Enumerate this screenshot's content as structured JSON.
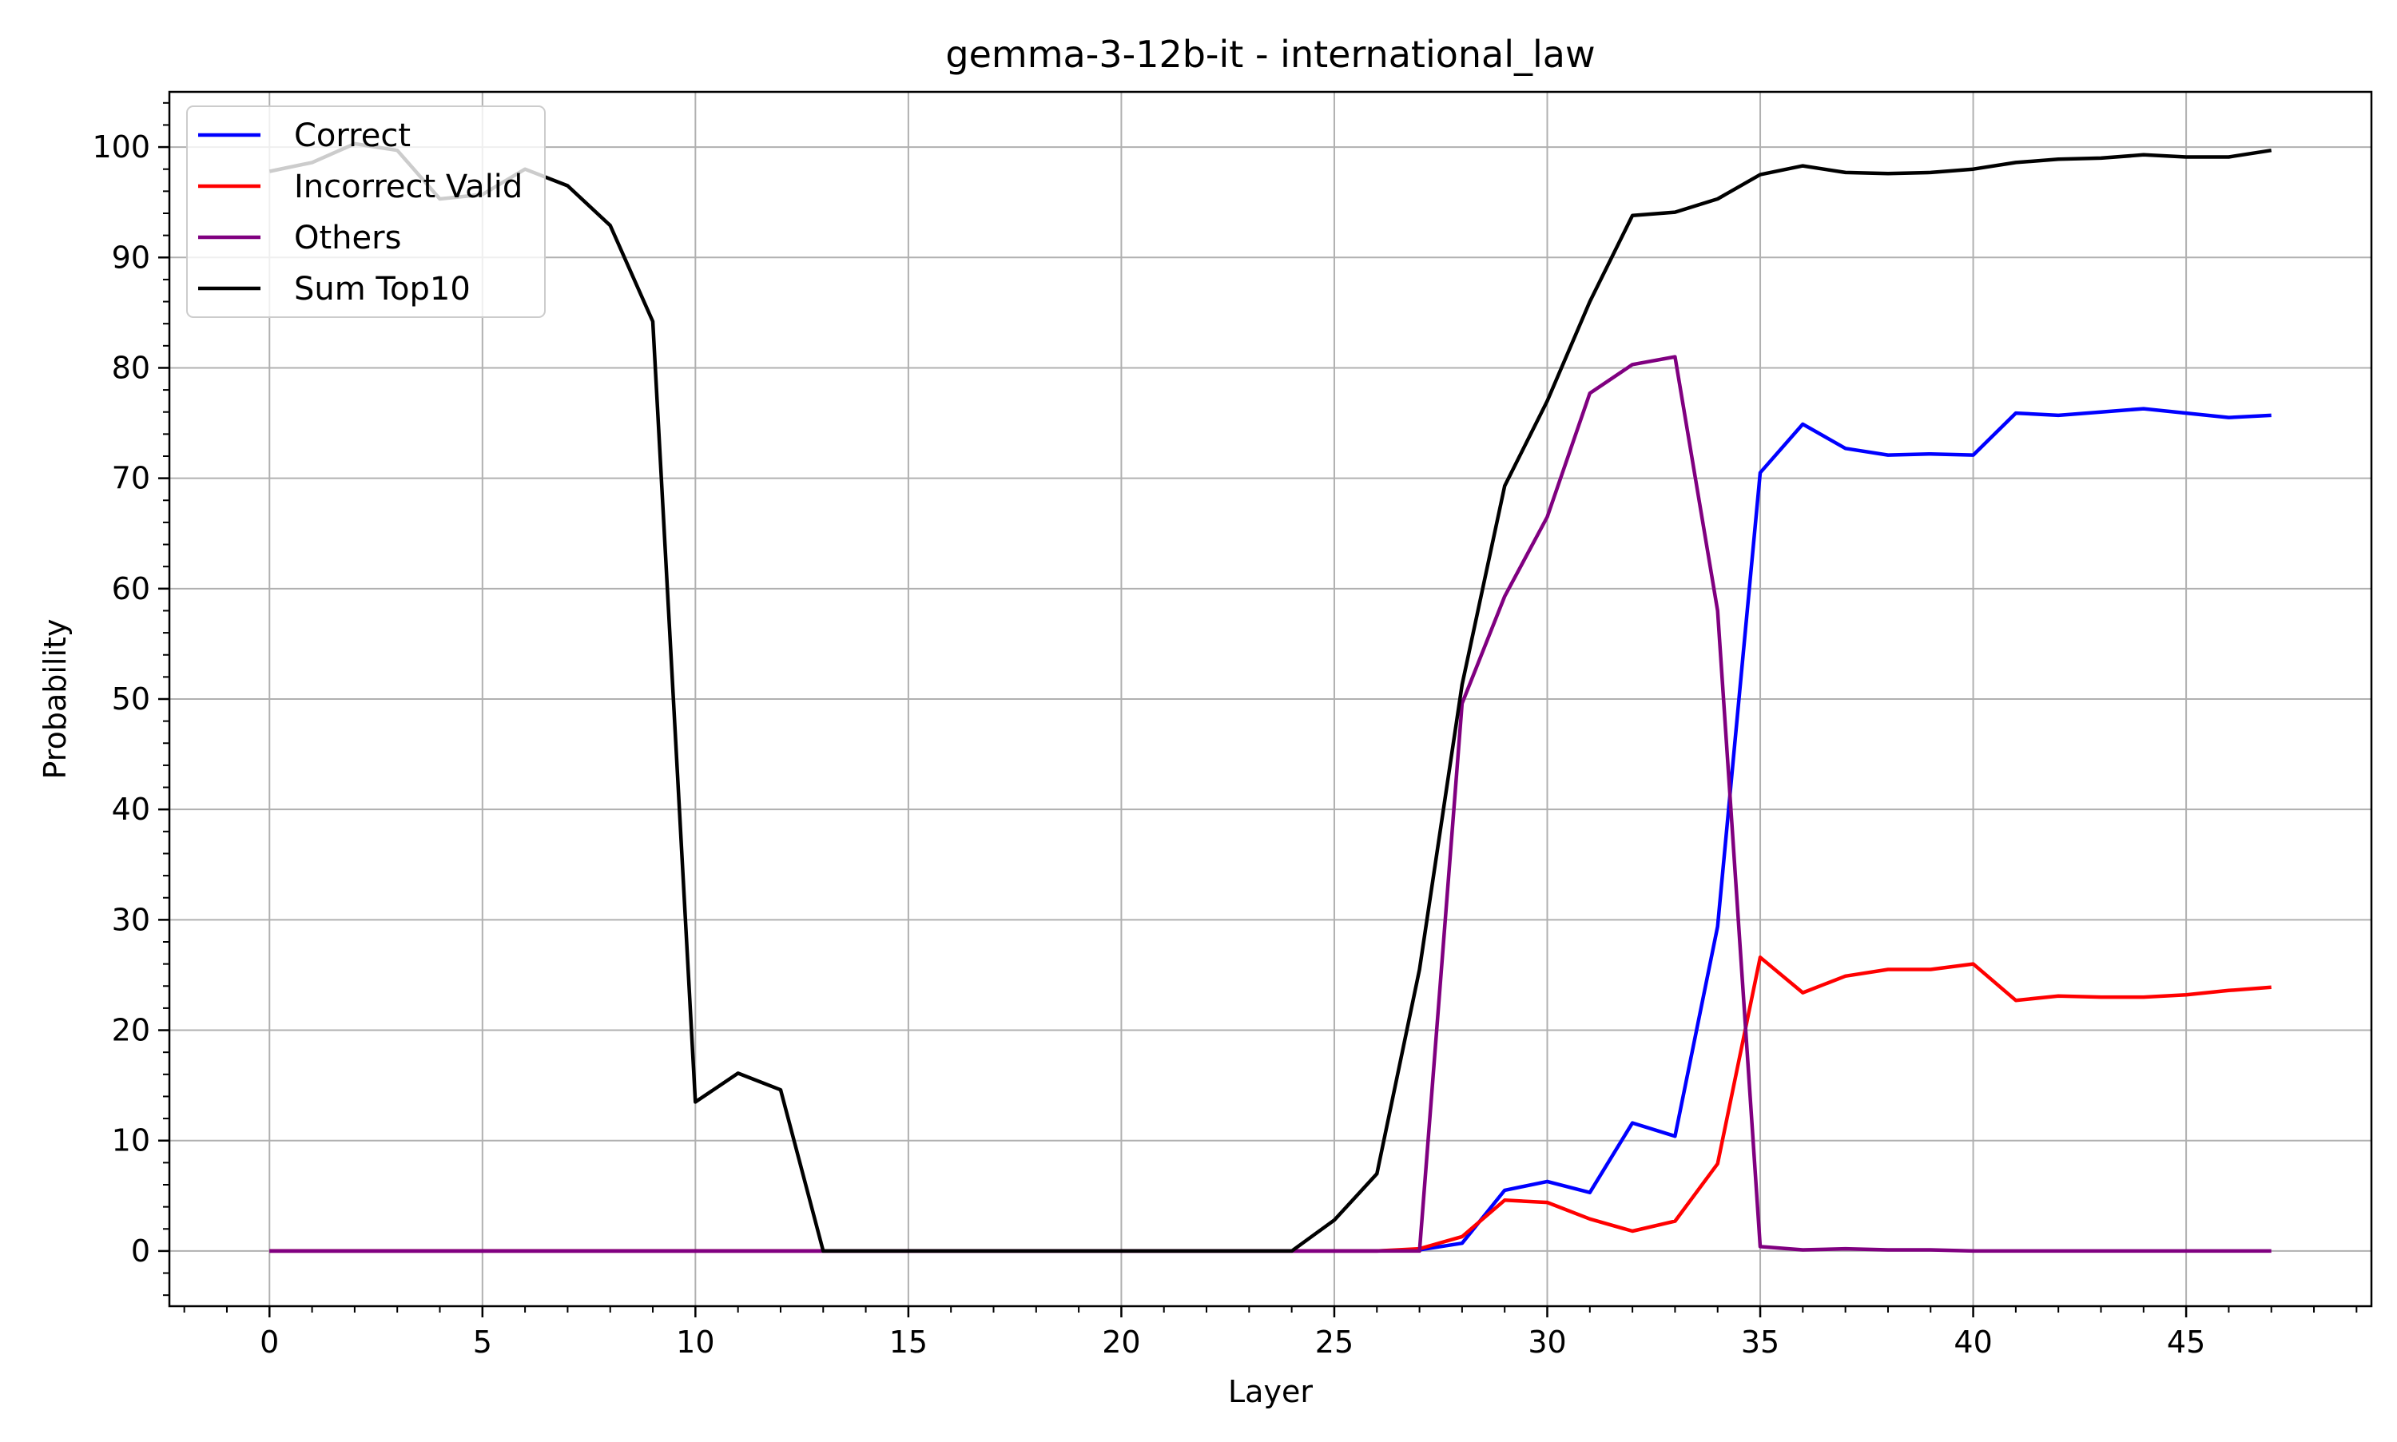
{
  "chart_data": {
    "type": "line",
    "title": "gemma-3-12b-it - international_law",
    "xlabel": "Layer",
    "ylabel": "Probability",
    "xlim": [
      -2.35,
      49.35
    ],
    "ylim": [
      -5,
      105
    ],
    "xticks": [
      0,
      5,
      10,
      15,
      20,
      25,
      30,
      35,
      40,
      45
    ],
    "yticks": [
      0,
      10,
      20,
      30,
      40,
      50,
      60,
      70,
      80,
      90,
      100
    ],
    "grid": true,
    "legend_position": "top-left",
    "x": [
      0,
      1,
      2,
      3,
      4,
      5,
      6,
      7,
      8,
      9,
      10,
      11,
      12,
      13,
      14,
      15,
      16,
      17,
      18,
      19,
      20,
      21,
      22,
      23,
      24,
      25,
      26,
      27,
      28,
      29,
      30,
      31,
      32,
      33,
      34,
      35,
      36,
      37,
      38,
      39,
      40,
      41,
      42,
      43,
      44,
      45,
      46,
      47
    ],
    "series": [
      {
        "name": "Correct",
        "color": "#0000ff",
        "values": [
          0,
          0,
          0,
          0,
          0,
          0,
          0,
          0,
          0,
          0,
          0,
          0,
          0,
          0,
          0,
          0,
          0,
          0,
          0,
          0,
          0,
          0,
          0,
          0,
          0,
          0,
          0,
          0.1,
          0.7,
          5.5,
          6.3,
          5.3,
          11.6,
          10.4,
          29.4,
          70.5,
          74.9,
          72.7,
          72.1,
          72.2,
          72.1,
          75.9,
          75.7,
          76.0,
          76.3,
          75.9,
          75.5,
          75.7
        ]
      },
      {
        "name": "Incorrect Valid",
        "color": "#ff0000",
        "values": [
          0,
          0,
          0,
          0,
          0,
          0,
          0,
          0,
          0,
          0,
          0,
          0,
          0,
          0,
          0,
          0,
          0,
          0,
          0,
          0,
          0,
          0,
          0,
          0,
          0,
          0,
          0,
          0.2,
          1.3,
          4.6,
          4.4,
          2.9,
          1.8,
          2.7,
          7.9,
          26.6,
          23.4,
          24.9,
          25.5,
          25.5,
          26.0,
          22.7,
          23.1,
          23.0,
          23.0,
          23.2,
          23.6,
          23.9
        ]
      },
      {
        "name": "Others",
        "color": "#800080",
        "values": [
          0,
          0,
          0,
          0,
          0,
          0,
          0,
          0,
          0,
          0,
          0,
          0,
          0,
          0,
          0,
          0,
          0,
          0,
          0,
          0,
          0,
          0,
          0,
          0,
          0,
          0,
          0,
          0,
          49.6,
          59.3,
          66.5,
          77.7,
          80.3,
          81.0,
          58.0,
          0.4,
          0.1,
          0.2,
          0.1,
          0.1,
          0,
          0,
          0,
          0,
          0,
          0,
          0,
          0
        ]
      },
      {
        "name": "Sum Top10",
        "color": "#000000",
        "values": [
          97.8,
          98.6,
          100.3,
          99.7,
          95.3,
          95.7,
          98.0,
          96.5,
          92.9,
          84.2,
          13.5,
          16.1,
          14.6,
          0,
          0,
          0,
          0,
          0,
          0,
          0,
          0,
          0,
          0,
          0,
          0,
          2.8,
          7.0,
          25.5,
          51.3,
          69.3,
          77.0,
          86.0,
          93.8,
          94.1,
          95.3,
          97.5,
          98.3,
          97.7,
          97.6,
          97.7,
          98.0,
          98.6,
          98.9,
          99.0,
          99.3,
          99.1,
          99.1,
          99.7
        ]
      }
    ]
  }
}
